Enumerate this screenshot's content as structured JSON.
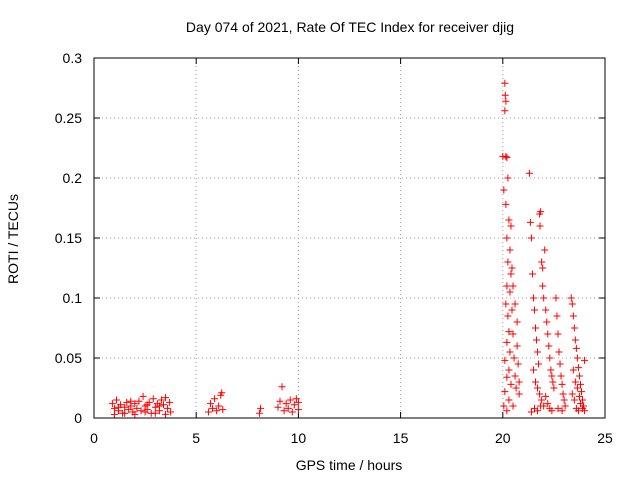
{
  "chart_data": {
    "type": "scatter",
    "title": "Day 074 of 2021, Rate Of TEC Index for receiver djig",
    "xlabel": "GPS time / hours",
    "ylabel": "ROTI / TECUs",
    "xlim": [
      0,
      25
    ],
    "ylim": [
      0,
      0.3
    ],
    "xticks": [
      0,
      5,
      10,
      15,
      20,
      25
    ],
    "xtick_labels": [
      "0",
      "5",
      "10",
      "15",
      "20",
      "25"
    ],
    "yticks": [
      0,
      0.05,
      0.1,
      0.15,
      0.2,
      0.25,
      0.3
    ],
    "ytick_labels": [
      "0",
      "0.05",
      "0.1",
      "0.15",
      "0.2",
      "0.25",
      "0.3"
    ],
    "grid": true,
    "marker": "+",
    "color": "#ff0000",
    "series": [
      {
        "name": "ROTI",
        "points": [
          [
            0.9,
            0.012
          ],
          [
            1.0,
            0.008
          ],
          [
            1.1,
            0.015
          ],
          [
            1.2,
            0.006
          ],
          [
            1.3,
            0.011
          ],
          [
            1.4,
            0.004
          ],
          [
            1.5,
            0.009
          ],
          [
            1.6,
            0.013
          ],
          [
            1.7,
            0.007
          ],
          [
            1.8,
            0.01
          ],
          [
            1.9,
            0.005
          ],
          [
            2.0,
            0.012
          ],
          [
            2.1,
            0.008
          ],
          [
            2.2,
            0.014
          ],
          [
            2.3,
            0.006
          ],
          [
            2.4,
            0.018
          ],
          [
            2.5,
            0.01
          ],
          [
            2.6,
            0.007
          ],
          [
            2.7,
            0.013
          ],
          [
            2.8,
            0.004
          ],
          [
            2.9,
            0.016
          ],
          [
            3.0,
            0.009
          ],
          [
            3.1,
            0.012
          ],
          [
            3.2,
            0.006
          ],
          [
            3.3,
            0.015
          ],
          [
            3.4,
            0.011
          ],
          [
            3.5,
            0.017
          ],
          [
            3.6,
            0.008
          ],
          [
            3.7,
            0.013
          ],
          [
            3.75,
            0.005
          ],
          [
            1.0,
            0.003
          ],
          [
            1.5,
            0.004
          ],
          [
            2.0,
            0.003
          ],
          [
            2.5,
            0.005
          ],
          [
            3.0,
            0.004
          ],
          [
            3.5,
            0.003
          ],
          [
            1.2,
            0.009
          ],
          [
            1.8,
            0.014
          ],
          [
            2.6,
            0.011
          ],
          [
            3.2,
            0.01
          ],
          [
            5.6,
            0.005
          ],
          [
            5.7,
            0.012
          ],
          [
            5.8,
            0.008
          ],
          [
            5.9,
            0.016
          ],
          [
            6.0,
            0.006
          ],
          [
            6.1,
            0.01
          ],
          [
            6.2,
            0.019
          ],
          [
            6.25,
            0.021
          ],
          [
            6.3,
            0.007
          ],
          [
            8.1,
            0.004
          ],
          [
            8.15,
            0.008
          ],
          [
            9.0,
            0.009
          ],
          [
            9.1,
            0.014
          ],
          [
            9.2,
            0.026
          ],
          [
            9.3,
            0.006
          ],
          [
            9.4,
            0.012
          ],
          [
            9.5,
            0.008
          ],
          [
            9.6,
            0.015
          ],
          [
            9.7,
            0.005
          ],
          [
            9.8,
            0.011
          ],
          [
            9.9,
            0.016
          ],
          [
            10.0,
            0.007
          ],
          [
            10.0,
            0.013
          ],
          [
            20.0,
            0.218
          ],
          [
            20.05,
            0.19
          ],
          [
            20.1,
            0.279
          ],
          [
            20.12,
            0.269
          ],
          [
            20.15,
            0.264
          ],
          [
            20.1,
            0.256
          ],
          [
            20.15,
            0.218
          ],
          [
            20.2,
            0.217
          ],
          [
            20.15,
            0.178
          ],
          [
            20.2,
            0.15
          ],
          [
            20.25,
            0.13
          ],
          [
            20.2,
            0.11
          ],
          [
            20.15,
            0.095
          ],
          [
            20.25,
            0.085
          ],
          [
            20.3,
            0.072
          ],
          [
            20.2,
            0.063
          ],
          [
            20.35,
            0.055
          ],
          [
            20.1,
            0.048
          ],
          [
            20.3,
            0.04
          ],
          [
            20.2,
            0.034
          ],
          [
            20.4,
            0.028
          ],
          [
            20.1,
            0.022
          ],
          [
            20.3,
            0.015
          ],
          [
            20.5,
            0.01
          ],
          [
            20.2,
            0.006
          ],
          [
            20.4,
            0.12
          ],
          [
            20.35,
            0.105
          ],
          [
            20.45,
            0.09
          ],
          [
            20.5,
            0.07
          ],
          [
            20.55,
            0.05
          ],
          [
            20.6,
            0.035
          ],
          [
            20.65,
            0.025
          ],
          [
            20.7,
            0.06
          ],
          [
            20.75,
            0.045
          ],
          [
            20.8,
            0.02
          ],
          [
            20.3,
            0.165
          ],
          [
            20.25,
            0.2
          ],
          [
            20.35,
            0.14
          ],
          [
            20.4,
            0.16
          ],
          [
            20.45,
            0.125
          ],
          [
            20.5,
            0.11
          ],
          [
            20.6,
            0.095
          ],
          [
            20.7,
            0.08
          ],
          [
            20.8,
            0.03
          ],
          [
            20.05,
            0.01
          ],
          [
            21.3,
            0.204
          ],
          [
            21.35,
            0.163
          ],
          [
            21.4,
            0.15
          ],
          [
            21.45,
            0.12
          ],
          [
            21.5,
            0.1
          ],
          [
            21.55,
            0.09
          ],
          [
            21.6,
            0.075
          ],
          [
            21.65,
            0.065
          ],
          [
            21.7,
            0.055
          ],
          [
            21.75,
            0.045
          ],
          [
            21.8,
            0.17
          ],
          [
            21.85,
            0.172
          ],
          [
            21.82,
            0.16
          ],
          [
            21.9,
            0.13
          ],
          [
            21.95,
            0.11
          ],
          [
            22.0,
            0.1
          ],
          [
            21.5,
            0.04
          ],
          [
            21.6,
            0.03
          ],
          [
            21.7,
            0.025
          ],
          [
            21.8,
            0.02
          ],
          [
            21.9,
            0.015
          ],
          [
            22.0,
            0.01
          ],
          [
            22.1,
            0.09
          ],
          [
            22.15,
            0.08
          ],
          [
            22.2,
            0.07
          ],
          [
            22.25,
            0.06
          ],
          [
            22.3,
            0.05
          ],
          [
            22.35,
            0.04
          ],
          [
            22.4,
            0.035
          ],
          [
            22.45,
            0.03
          ],
          [
            22.5,
            0.025
          ],
          [
            22.1,
            0.018
          ],
          [
            22.2,
            0.012
          ],
          [
            22.3,
            0.008
          ],
          [
            22.4,
            0.006
          ],
          [
            21.4,
            0.005
          ],
          [
            21.55,
            0.008
          ],
          [
            21.7,
            0.006
          ],
          [
            21.85,
            0.01
          ],
          [
            22.05,
            0.14
          ],
          [
            21.95,
            0.125
          ],
          [
            22.6,
            0.1
          ],
          [
            22.65,
            0.085
          ],
          [
            22.7,
            0.07
          ],
          [
            22.75,
            0.055
          ],
          [
            22.8,
            0.045
          ],
          [
            22.85,
            0.035
          ],
          [
            22.9,
            0.028
          ],
          [
            22.95,
            0.02
          ],
          [
            23.0,
            0.015
          ],
          [
            23.05,
            0.01
          ],
          [
            22.7,
            0.008
          ],
          [
            22.9,
            0.006
          ],
          [
            23.35,
            0.1
          ],
          [
            23.4,
            0.095
          ],
          [
            23.45,
            0.085
          ],
          [
            23.5,
            0.075
          ],
          [
            23.55,
            0.065
          ],
          [
            23.6,
            0.058
          ],
          [
            23.65,
            0.05
          ],
          [
            23.7,
            0.042
          ],
          [
            23.75,
            0.035
          ],
          [
            23.8,
            0.028
          ],
          [
            23.85,
            0.022
          ],
          [
            23.9,
            0.015
          ],
          [
            23.95,
            0.01
          ],
          [
            23.4,
            0.02
          ],
          [
            23.5,
            0.015
          ],
          [
            23.6,
            0.008
          ],
          [
            23.7,
            0.006
          ],
          [
            23.8,
            0.012
          ],
          [
            23.9,
            0.008
          ],
          [
            24.0,
            0.006
          ],
          [
            23.45,
            0.04
          ],
          [
            23.55,
            0.03
          ],
          [
            23.65,
            0.025
          ],
          [
            23.75,
            0.018
          ],
          [
            24.0,
            0.048
          ]
        ]
      }
    ]
  }
}
